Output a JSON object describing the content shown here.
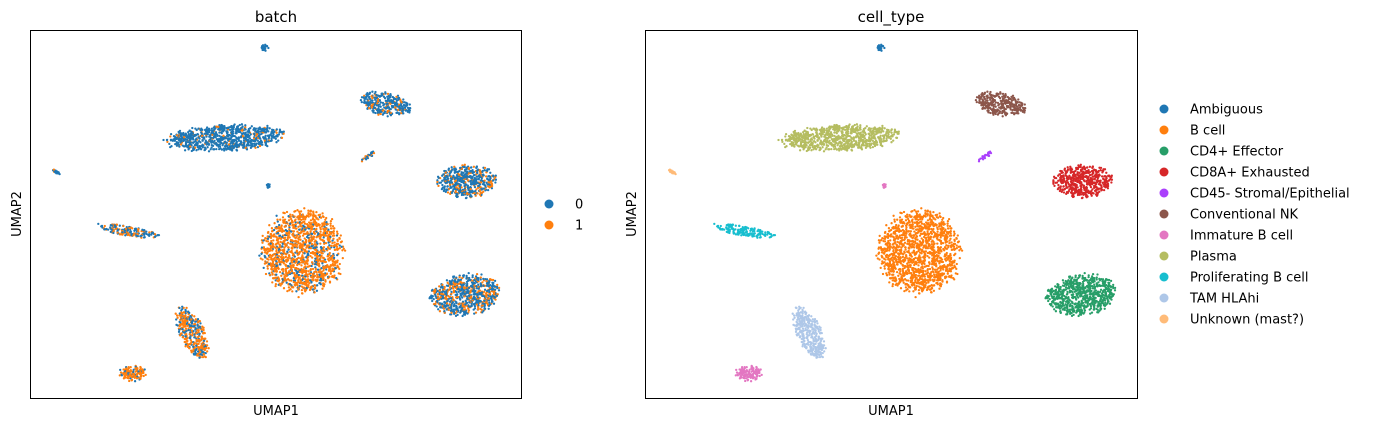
{
  "chart_data": [
    {
      "type": "scatter",
      "title": "batch",
      "xlabel": "UMAP1",
      "ylabel": "UMAP2",
      "ticks": "none",
      "legend_position": "right",
      "series": [
        {
          "name": "0",
          "color": "#1f77b4"
        },
        {
          "name": "1",
          "color": "#ff7f0e"
        }
      ],
      "clusters": [
        {
          "center": [
            265,
            48
          ],
          "spread": [
            4,
            4
          ],
          "angle": -40,
          "mix": [
            0.95,
            0.05
          ]
        },
        {
          "center": [
            385,
            104
          ],
          "spread": [
            26,
            11
          ],
          "angle": 12,
          "mix": [
            0.8,
            0.2
          ]
        },
        {
          "center": [
            225,
            138
          ],
          "spread": [
            58,
            13
          ],
          "angle": -3,
          "mix": [
            0.88,
            0.12
          ]
        },
        {
          "center": [
            369,
            156
          ],
          "spread": [
            11,
            2
          ],
          "angle": -33,
          "mix": [
            0.6,
            0.4
          ]
        },
        {
          "center": [
            56,
            172
          ],
          "spread": [
            5,
            1.5
          ],
          "angle": 35,
          "mix": [
            0.8,
            0.2
          ]
        },
        {
          "center": [
            268,
            186
          ],
          "spread": [
            2,
            2
          ],
          "angle": 0,
          "mix": [
            1,
            0
          ]
        },
        {
          "center": [
            467,
            181
          ],
          "spread": [
            29,
            16
          ],
          "angle": 0,
          "mix": [
            0.78,
            0.22
          ]
        },
        {
          "center": [
            128,
            231
          ],
          "spread": [
            30,
            5
          ],
          "angle": 10,
          "mix": [
            0.55,
            0.45
          ]
        },
        {
          "center": [
            302,
            252
          ],
          "spread": [
            40,
            42
          ],
          "angle": 0,
          "mix": [
            0.22,
            0.78
          ]
        },
        {
          "center": [
            465,
            295
          ],
          "spread": [
            34,
            20
          ],
          "angle": -10,
          "mix": [
            0.68,
            0.32
          ]
        },
        {
          "center": [
            192,
            333
          ],
          "spread": [
            12,
            27
          ],
          "angle": -25,
          "mix": [
            0.38,
            0.62
          ]
        },
        {
          "center": [
            132,
            373
          ],
          "spread": [
            14,
            8
          ],
          "angle": 0,
          "mix": [
            0.25,
            0.75
          ]
        }
      ]
    },
    {
      "type": "scatter",
      "title": "cell_type",
      "xlabel": "UMAP1",
      "ylabel": "UMAP2",
      "ticks": "none",
      "legend_position": "right",
      "series": [
        {
          "name": "Ambiguous",
          "color": "#1f77b4"
        },
        {
          "name": "B cell",
          "color": "#ff7f0e"
        },
        {
          "name": "CD4+ Effector",
          "color": "#279e68"
        },
        {
          "name": "CD8A+ Exhausted",
          "color": "#d62728"
        },
        {
          "name": "CD45- Stromal/Epithelial",
          "color": "#aa40fc"
        },
        {
          "name": "Conventional NK",
          "color": "#8c564b"
        },
        {
          "name": "Immature B cell",
          "color": "#e377c2"
        },
        {
          "name": "Plasma",
          "color": "#b5bd61"
        },
        {
          "name": "Proliferating B cell",
          "color": "#17becf"
        },
        {
          "name": "TAM HLAhi",
          "color": "#aec7e8"
        },
        {
          "name": "Unknown (mast?)",
          "color": "#ffbb78"
        }
      ]
    }
  ]
}
